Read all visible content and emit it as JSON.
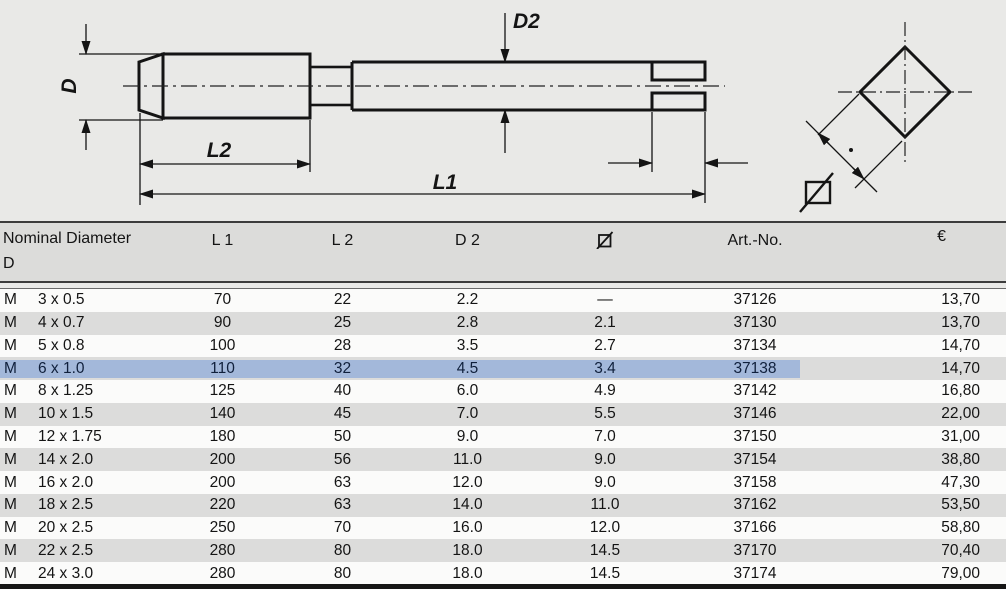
{
  "drawing": {
    "description": "side view of a hand tap with square drive end and square cross-section detail",
    "labels": {
      "d": "D",
      "d2": "D2",
      "l1": "L1",
      "l2": "L2"
    },
    "square_section_symbol": "square-with-diagonal"
  },
  "table": {
    "headers": {
      "nominal_line1": "Nominal Diameter",
      "nominal_line2": "D",
      "l1": "L 1",
      "l2": "L 2",
      "d2": "D 2",
      "square_symbol": "⧄",
      "art_no": "Art.-No.",
      "currency": "€"
    },
    "rows": [
      {
        "m": "M",
        "size": "3 x 0.5",
        "l1": "70",
        "l2": "22",
        "d2": "2.2",
        "sq": "—",
        "art": "37126",
        "price": "13,70",
        "highlighted": false
      },
      {
        "m": "M",
        "size": "4 x 0.7",
        "l1": "90",
        "l2": "25",
        "d2": "2.8",
        "sq": "2.1",
        "art": "37130",
        "price": "13,70",
        "highlighted": false
      },
      {
        "m": "M",
        "size": "5 x 0.8",
        "l1": "100",
        "l2": "28",
        "d2": "3.5",
        "sq": "2.7",
        "art": "37134",
        "price": "14,70",
        "highlighted": false
      },
      {
        "m": "M",
        "size": "6 x 1.0",
        "l1": "110",
        "l2": "32",
        "d2": "4.5",
        "sq": "3.4",
        "art": "37138",
        "price": "14,70",
        "highlighted": true
      },
      {
        "m": "M",
        "size": "8 x 1.25",
        "l1": "125",
        "l2": "40",
        "d2": "6.0",
        "sq": "4.9",
        "art": "37142",
        "price": "16,80",
        "highlighted": false
      },
      {
        "m": "M",
        "size": "10 x 1.5",
        "l1": "140",
        "l2": "45",
        "d2": "7.0",
        "sq": "5.5",
        "art": "37146",
        "price": "22,00",
        "highlighted": false
      },
      {
        "m": "M",
        "size": "12 x 1.75",
        "l1": "180",
        "l2": "50",
        "d2": "9.0",
        "sq": "7.0",
        "art": "37150",
        "price": "31,00",
        "highlighted": false
      },
      {
        "m": "M",
        "size": "14 x 2.0",
        "l1": "200",
        "l2": "56",
        "d2": "11.0",
        "sq": "9.0",
        "art": "37154",
        "price": "38,80",
        "highlighted": false
      },
      {
        "m": "M",
        "size": "16 x 2.0",
        "l1": "200",
        "l2": "63",
        "d2": "12.0",
        "sq": "9.0",
        "art": "37158",
        "price": "47,30",
        "highlighted": false
      },
      {
        "m": "M",
        "size": "18 x 2.5",
        "l1": "220",
        "l2": "63",
        "d2": "14.0",
        "sq": "11.0",
        "art": "37162",
        "price": "53,50",
        "highlighted": false
      },
      {
        "m": "M",
        "size": "20 x 2.5",
        "l1": "250",
        "l2": "70",
        "d2": "16.0",
        "sq": "12.0",
        "art": "37166",
        "price": "58,80",
        "highlighted": false
      },
      {
        "m": "M",
        "size": "22 x 2.5",
        "l1": "280",
        "l2": "80",
        "d2": "18.0",
        "sq": "14.5",
        "art": "37170",
        "price": "70,40",
        "highlighted": false
      },
      {
        "m": "M",
        "size": "24 x 3.0",
        "l1": "280",
        "l2": "80",
        "d2": "18.0",
        "sq": "14.5",
        "art": "37174",
        "price": "79,00",
        "highlighted": false
      }
    ]
  },
  "colors": {
    "page_background": "#e9e9e7",
    "row_white": "#fbfbfa",
    "row_gray": "#dcdcdb",
    "header_gray": "#dcdcda",
    "highlight_blue": "#a3b8da",
    "highlight_text": "#10203c",
    "line_dark": "#141414"
  }
}
